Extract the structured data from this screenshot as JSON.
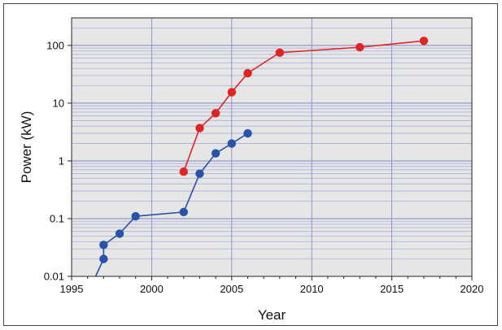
{
  "chart_data": {
    "type": "line",
    "title": "",
    "xlabel": "Year",
    "ylabel": "Power (kW)",
    "xlim": [
      1995,
      2020
    ],
    "ylim": [
      0.01,
      300
    ],
    "yscale": "log",
    "grid": true,
    "x_ticks": [
      1995,
      2000,
      2005,
      2010,
      2015,
      2020
    ],
    "x_tick_labels": [
      "1995",
      "2000",
      "2005",
      "2010",
      "2015",
      "2020"
    ],
    "y_ticks": [
      0.01,
      0.1,
      1,
      10,
      100
    ],
    "y_tick_labels": [
      "0.01",
      "0.1",
      "1",
      "10",
      "100"
    ],
    "series": [
      {
        "color": "#e02424",
        "x": [
          2002,
          2003,
          2004,
          2005,
          2006,
          2008,
          2013,
          2017
        ],
        "y": [
          0.65,
          3.7,
          6.7,
          15.5,
          33,
          75,
          93,
          120
        ]
      },
      {
        "color": "#2a52a8",
        "x": [
          1997,
          1997,
          1998,
          1999,
          2002,
          2003,
          2004,
          2005,
          2006
        ],
        "y": [
          0.02,
          0.035,
          0.055,
          0.11,
          0.13,
          0.6,
          1.35,
          2.0,
          3.0
        ],
        "tail_line": {
          "x": [
            1996.5,
            1997
          ],
          "y": [
            0.01,
            0.02
          ]
        }
      }
    ],
    "colors": {
      "plot_bg": "#e6e6e6",
      "major_grid": "#7d84c6",
      "minor_grid": "#a9aedb"
    }
  }
}
